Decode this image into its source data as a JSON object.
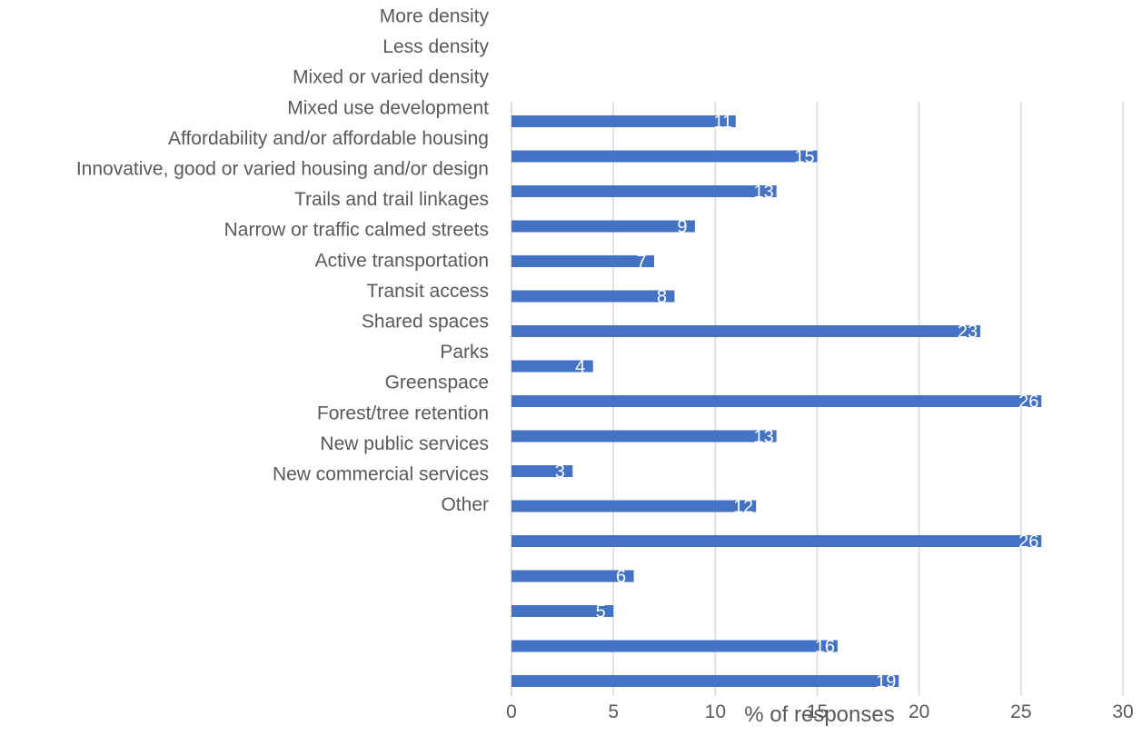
{
  "chart_data": {
    "type": "bar",
    "orientation": "horizontal",
    "categories": [
      "More density",
      "Less density",
      "Mixed or varied density",
      "Mixed use development",
      "Affordability and/or affordable housing",
      "Innovative, good or varied housing and/or design",
      "Trails and trail linkages",
      "Narrow or traffic calmed streets",
      "Active transportation",
      "Transit access",
      "Shared spaces",
      "Parks",
      "Greenspace",
      "Forest/tree retention",
      "New public services",
      "New commercial services",
      "Other"
    ],
    "values": [
      11,
      15,
      13,
      9,
      7,
      8,
      23,
      4,
      26,
      13,
      3,
      12,
      26,
      6,
      5,
      16,
      19
    ],
    "xlabel": "% of responses",
    "xlim": [
      0,
      30
    ],
    "x_ticks": [
      0,
      5,
      10,
      15,
      20,
      25,
      30
    ],
    "grid": "vertical",
    "bar_color": "#4472C4",
    "gridline_color": "#D9D9D9",
    "text_color": "#595959",
    "data_label_color": "#FFFFFF"
  }
}
